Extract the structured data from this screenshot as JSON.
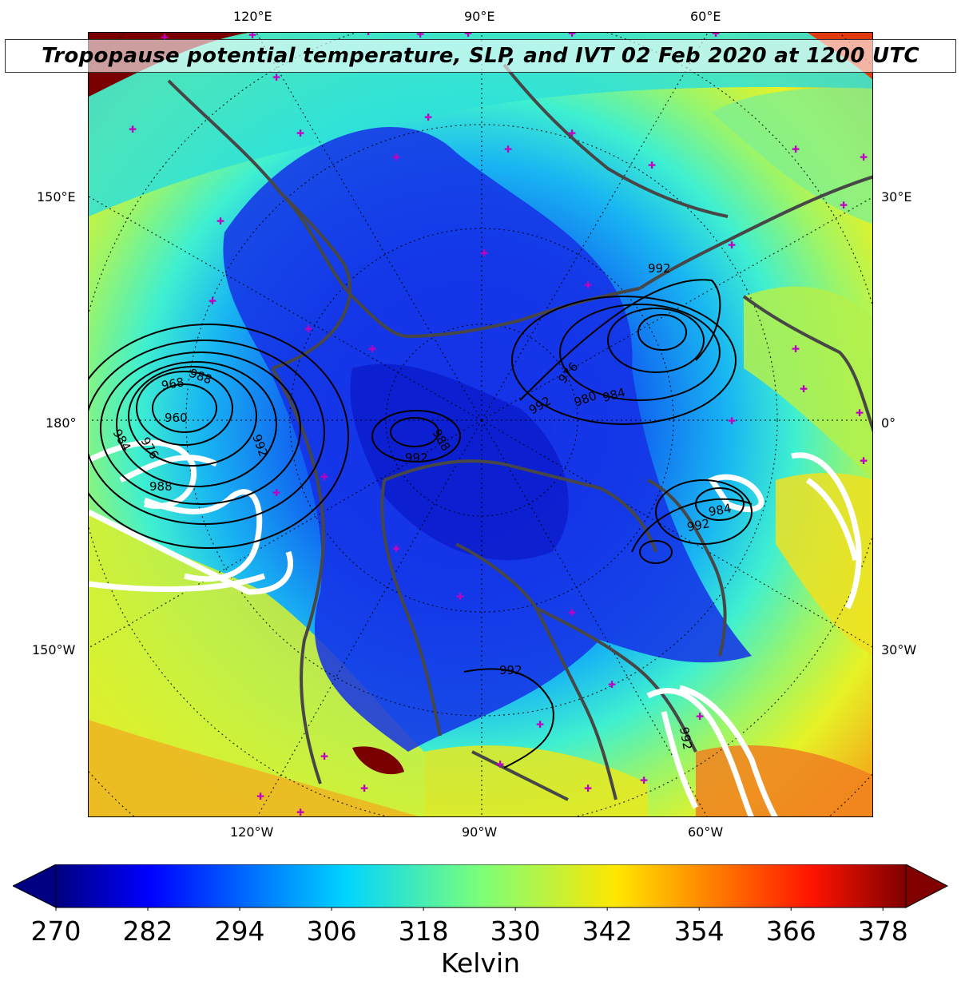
{
  "title": "Tropopause potential temperature, SLP, and IVT 02 Feb 2020 at 1200 UTC",
  "lon_labels": {
    "top": [
      "120°E",
      "90°E",
      "60°E"
    ],
    "bottom": [
      "120°W",
      "90°W",
      "60°W"
    ],
    "left": [
      "150°E",
      "180°",
      "150°W"
    ],
    "right": [
      "30°E",
      "0°",
      "30°W"
    ]
  },
  "slp_contour_labels": [
    "992",
    "976",
    "980",
    "984",
    "992",
    "988",
    "992",
    "968",
    "960",
    "988",
    "984",
    "976",
    "992",
    "988",
    "984",
    "992",
    "992",
    "992"
  ],
  "colorbar": {
    "ticks": [
      "270",
      "282",
      "294",
      "306",
      "318",
      "330",
      "342",
      "354",
      "366",
      "378"
    ],
    "min": 270,
    "max": 381,
    "label": "Kelvin",
    "colormap": "jet",
    "extend": "both"
  },
  "colors": {
    "slp_contour": "#000000",
    "ivt_contour": "#ffffff",
    "coastline": "#4a4a4a",
    "station_marker": "#c000c0"
  }
}
